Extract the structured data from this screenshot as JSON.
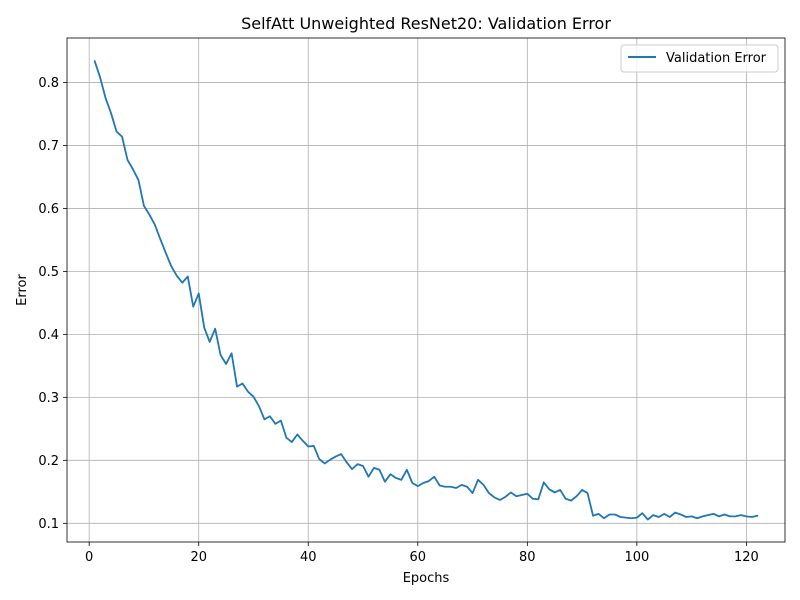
{
  "chart_data": {
    "type": "line",
    "title": "SelfAtt Unweighted ResNet20: Validation Error",
    "xlabel": "Epochs",
    "ylabel": "Error",
    "xlim": [
      -4.05,
      127.05
    ],
    "ylim": [
      0.0703,
      0.8706
    ],
    "xticks": [
      0,
      20,
      40,
      60,
      80,
      100,
      120
    ],
    "yticks": [
      0.1,
      0.2,
      0.3,
      0.4,
      0.5,
      0.6,
      0.7,
      0.8
    ],
    "xtick_labels": [
      "0",
      "20",
      "40",
      "60",
      "80",
      "100",
      "120"
    ],
    "ytick_labels": [
      "0.1",
      "0.2",
      "0.3",
      "0.4",
      "0.5",
      "0.6",
      "0.7",
      "0.8"
    ],
    "grid": true,
    "legend_position": "top-right",
    "colors": {
      "series": "#1f77b4",
      "grid": "#b0b0b0",
      "axis": "#000000"
    },
    "series": [
      {
        "name": "Validation Error",
        "x": [
          1,
          2,
          3,
          4,
          5,
          6,
          7,
          8,
          9,
          10,
          11,
          12,
          13,
          14,
          15,
          16,
          17,
          18,
          19,
          20,
          21,
          22,
          23,
          24,
          25,
          26,
          27,
          28,
          29,
          30,
          31,
          32,
          33,
          34,
          35,
          36,
          37,
          38,
          39,
          40,
          41,
          42,
          43,
          44,
          45,
          46,
          47,
          48,
          49,
          50,
          51,
          52,
          53,
          54,
          55,
          56,
          57,
          58,
          59,
          60,
          61,
          62,
          63,
          64,
          65,
          66,
          67,
          68,
          69,
          70,
          71,
          72,
          73,
          74,
          75,
          76,
          77,
          78,
          79,
          80,
          81,
          82,
          83,
          84,
          85,
          86,
          87,
          88,
          89,
          90,
          91,
          92,
          93,
          94,
          95,
          96,
          97,
          98,
          99,
          100,
          101,
          102,
          103,
          104,
          105,
          106,
          107,
          108,
          109,
          110,
          111,
          112,
          113,
          114,
          115,
          116,
          117,
          118,
          119,
          120,
          121,
          122
        ],
        "values": [
          0.834,
          0.808,
          0.775,
          0.751,
          0.722,
          0.714,
          0.677,
          0.662,
          0.645,
          0.604,
          0.59,
          0.574,
          0.551,
          0.529,
          0.508,
          0.493,
          0.482,
          0.492,
          0.444,
          0.465,
          0.411,
          0.388,
          0.409,
          0.367,
          0.353,
          0.37,
          0.317,
          0.322,
          0.309,
          0.301,
          0.286,
          0.265,
          0.27,
          0.258,
          0.263,
          0.236,
          0.229,
          0.241,
          0.231,
          0.222,
          0.223,
          0.202,
          0.195,
          0.201,
          0.206,
          0.21,
          0.197,
          0.186,
          0.194,
          0.191,
          0.174,
          0.188,
          0.185,
          0.166,
          0.178,
          0.172,
          0.169,
          0.185,
          0.164,
          0.159,
          0.164,
          0.167,
          0.174,
          0.16,
          0.158,
          0.158,
          0.156,
          0.161,
          0.158,
          0.148,
          0.169,
          0.161,
          0.148,
          0.141,
          0.137,
          0.142,
          0.149,
          0.143,
          0.145,
          0.147,
          0.139,
          0.138,
          0.165,
          0.154,
          0.149,
          0.153,
          0.139,
          0.136,
          0.143,
          0.153,
          0.148,
          0.112,
          0.115,
          0.108,
          0.114,
          0.114,
          0.11,
          0.109,
          0.108,
          0.109,
          0.116,
          0.106,
          0.113,
          0.11,
          0.115,
          0.11,
          0.117,
          0.114,
          0.11,
          0.111,
          0.108,
          0.111,
          0.113,
          0.115,
          0.111,
          0.114,
          0.111,
          0.111,
          0.113,
          0.111,
          0.11,
          0.112
        ]
      }
    ]
  }
}
